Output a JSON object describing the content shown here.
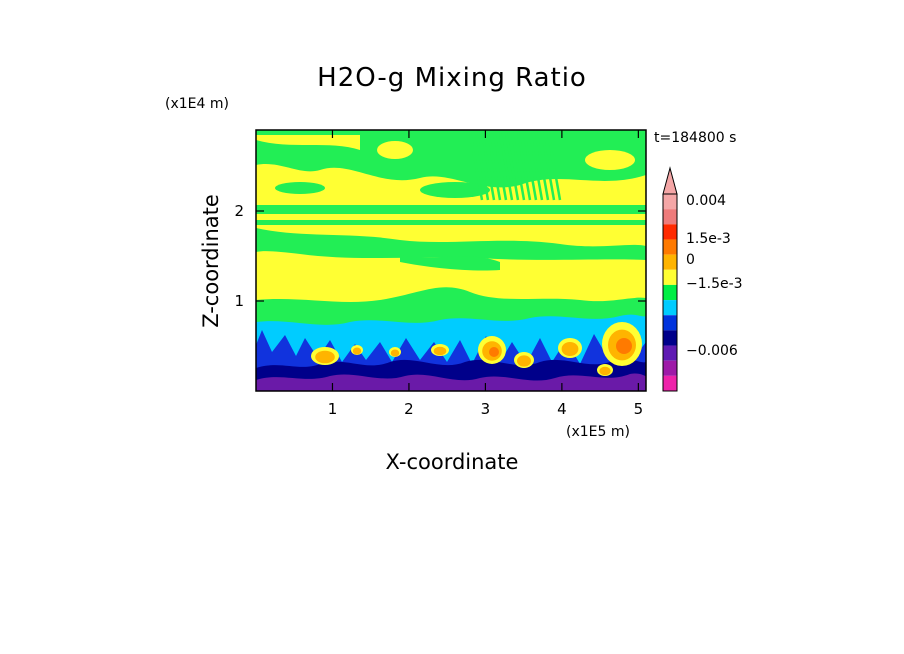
{
  "chart_data": {
    "type": "heatmap",
    "title": "H2O-g Mixing Ratio",
    "xlabel": "X-coordinate",
    "ylabel": "Z-coordinate",
    "x_unit": "(x1E5 m)",
    "y_unit": "(x1E4 m)",
    "time_label": "t=184800 s",
    "xlim": [
      0,
      5.1
    ],
    "ylim": [
      0,
      2.9
    ],
    "x_ticks": [
      "1",
      "2",
      "3",
      "4",
      "5"
    ],
    "y_ticks": [
      "1",
      "2"
    ],
    "colorbar": {
      "tick_labels": [
        "0.004",
        "1.5e-3",
        "0",
        "−1.5e-3",
        "−0.006"
      ],
      "levels_top_to_bottom": [
        {
          "color": "#f4a6a6"
        },
        {
          "color": "#ee7b7b"
        },
        {
          "color": "#ff2a00"
        },
        {
          "color": "#ff7a00"
        },
        {
          "color": "#ffb400"
        },
        {
          "color": "#ffff33"
        },
        {
          "color": "#00ee44"
        },
        {
          "color": "#00ccff"
        },
        {
          "color": "#0033dd"
        },
        {
          "color": "#00008a"
        },
        {
          "color": "#5f1ab3"
        },
        {
          "color": "#9e1aa8"
        },
        {
          "color": "#ee22aa"
        }
      ]
    },
    "field_colors": {
      "yellow": "#ffff33",
      "green": "#22ee55",
      "cyan": "#00ccff",
      "blue": "#1133dd",
      "navy": "#00008a",
      "purple": "#6a1aa8",
      "orange": "#ffb400",
      "red_orange": "#ff7a00"
    }
  }
}
